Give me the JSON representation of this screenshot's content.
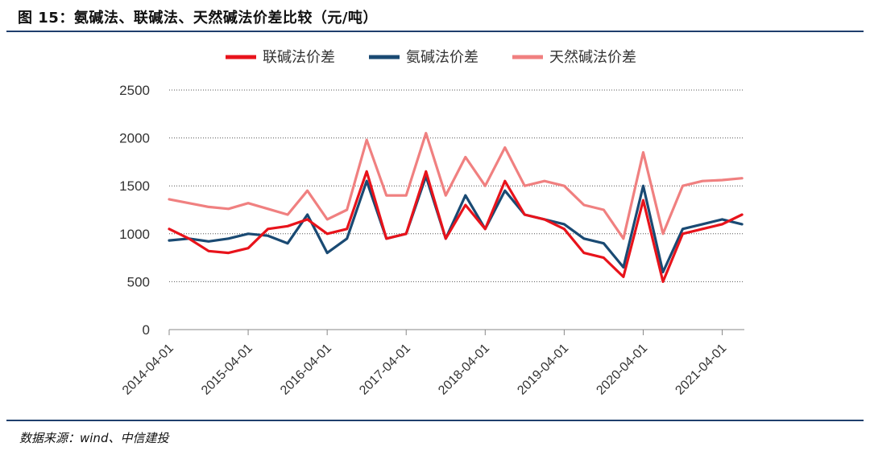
{
  "figure": {
    "title": "图 15：氨碱法、联碱法、天然碱法价差比较（元/吨）",
    "source": "数据来源：wind、中信建投"
  },
  "chart_data": {
    "type": "line",
    "ylim": [
      0,
      2500
    ],
    "yticks": [
      0,
      500,
      1000,
      1500,
      2000,
      2500
    ],
    "xticks": [
      "2014-04-01",
      "2015-04-01",
      "2016-04-01",
      "2017-04-01",
      "2018-04-01",
      "2019-04-01",
      "2020-04-01",
      "2021-04-01"
    ],
    "x": [
      2014.0,
      2014.25,
      2014.5,
      2014.75,
      2015.0,
      2015.25,
      2015.5,
      2015.75,
      2016.0,
      2016.25,
      2016.5,
      2016.75,
      2017.0,
      2017.25,
      2017.5,
      2017.75,
      2018.0,
      2018.25,
      2018.5,
      2018.75,
      2019.0,
      2019.25,
      2019.5,
      2019.75,
      2020.0,
      2020.25,
      2020.5,
      2020.75,
      2021.0,
      2021.25
    ],
    "grid": true,
    "legend_position": "top",
    "series": [
      {
        "name": "联碱法价差",
        "color": "#e8131b",
        "values": [
          1050,
          950,
          820,
          800,
          850,
          1050,
          1080,
          1150,
          1000,
          1050,
          1650,
          950,
          1000,
          1650,
          950,
          1300,
          1050,
          1550,
          1200,
          1150,
          1050,
          800,
          750,
          550,
          1350,
          500,
          1000,
          1050,
          1100,
          1200
        ]
      },
      {
        "name": "氨碱法价差",
        "color": "#1a4a73",
        "values": [
          930,
          950,
          920,
          950,
          1000,
          980,
          900,
          1200,
          800,
          950,
          1550,
          950,
          1000,
          1600,
          950,
          1400,
          1050,
          1450,
          1200,
          1150,
          1100,
          950,
          900,
          650,
          1500,
          600,
          1050,
          1100,
          1150,
          1100
        ]
      },
      {
        "name": "天然碱法价差",
        "color": "#f08080",
        "values": [
          1360,
          1320,
          1280,
          1260,
          1320,
          1260,
          1200,
          1450,
          1150,
          1250,
          1980,
          1400,
          1400,
          2050,
          1400,
          1800,
          1500,
          1900,
          1500,
          1550,
          1500,
          1300,
          1250,
          950,
          1850,
          1000,
          1500,
          1550,
          1560,
          1580
        ]
      }
    ]
  }
}
